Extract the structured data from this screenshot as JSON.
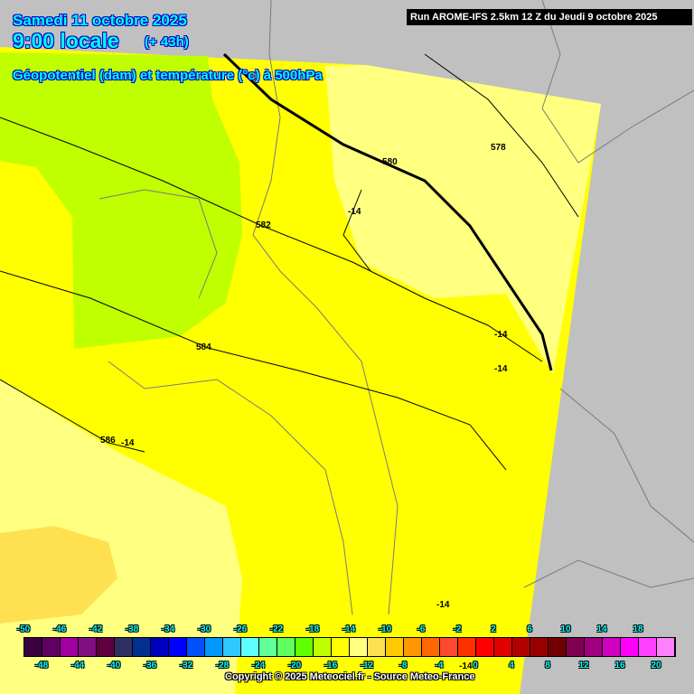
{
  "header": {
    "date": "Samedi 11 octobre 2025",
    "time": "9:00 locale",
    "lead": "(+ 43h)",
    "parameter": "Géopotentiel (dam) et température (°c) à 500hPa",
    "run": "Run AROME-IFS 2.5km 12 Z du Jeudi 9 octobre 2025"
  },
  "colors": {
    "no_data": "#c0c0c0",
    "temp_minus_18": "#c0ff00",
    "temp_minus_16": "#ffff00",
    "temp_minus_14": "#ffff80",
    "temp_minus_12": "#ffe050"
  },
  "contours": {
    "geopotential": [
      "578",
      "580",
      "582",
      "584",
      "586"
    ],
    "temperature": [
      "-14",
      "-14",
      "-14",
      "-14",
      "-14",
      "-14"
    ]
  },
  "legend": {
    "top_ticks": [
      "-50",
      "-46",
      "-42",
      "-38",
      "-34",
      "-30",
      "-26",
      "-22",
      "-18",
      "-14",
      "-10",
      "-6",
      "-2",
      "2",
      "6",
      "10",
      "14",
      "18"
    ],
    "bottom_ticks": [
      "-48",
      "-44",
      "-40",
      "-36",
      "-32",
      "-28",
      "-24",
      "-20",
      "-16",
      "-12",
      "-8",
      "-4",
      "0",
      "4",
      "8",
      "12",
      "16",
      "20"
    ],
    "colors": [
      "#3a0040",
      "#600060",
      "#a000a0",
      "#801080",
      "#600040",
      "#303060",
      "#003090",
      "#0000c0",
      "#0000ff",
      "#0050ff",
      "#0098ff",
      "#30c8ff",
      "#60ffff",
      "#60ff98",
      "#60ff60",
      "#60ff00",
      "#c0ff00",
      "#ffff00",
      "#ffff80",
      "#ffe050",
      "#ffc800",
      "#ff9800",
      "#ff6800",
      "#ff4830",
      "#ff3000",
      "#ff0000",
      "#e00000",
      "#b00000",
      "#980000",
      "#700000",
      "#800050",
      "#a00080",
      "#d000c0",
      "#ff00ff",
      "#ff40ff",
      "#ff80ff"
    ]
  },
  "copyright": "Copyright © 2025 Meteociel.fr - Source Meteo-France"
}
